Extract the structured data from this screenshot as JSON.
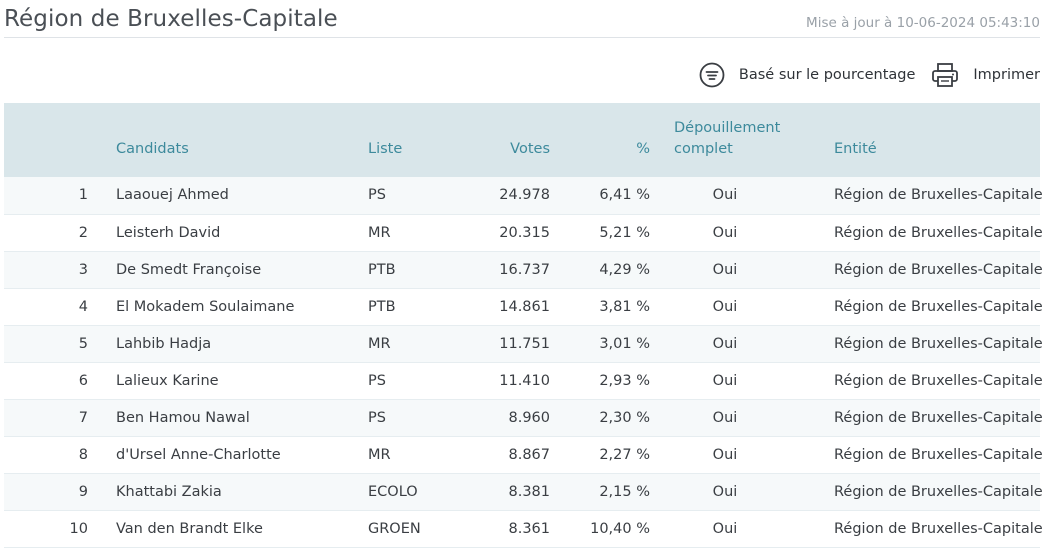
{
  "header": {
    "title": "Région de Bruxelles-Capitale",
    "updated": "Mise à jour à 10-06-2024 05:43:10"
  },
  "toolbar": {
    "percent_label": "Basé sur le pourcentage",
    "percent_icon": "sort-lines-icon",
    "print_label": "Imprimer",
    "print_icon": "printer-icon"
  },
  "table": {
    "columns": {
      "rank": "",
      "name": "Candidats",
      "list": "Liste",
      "votes": "Votes",
      "percent": "%",
      "complete": "Dépouillement complet",
      "entity": "Entité"
    },
    "rows": [
      {
        "rank": "1",
        "name": "Laaouej Ahmed",
        "list": "PS",
        "votes": "24.978",
        "percent": "6,41 %",
        "complete": "Oui",
        "entity": "Région de Bruxelles-Capitale"
      },
      {
        "rank": "2",
        "name": "Leisterh David",
        "list": "MR",
        "votes": "20.315",
        "percent": "5,21 %",
        "complete": "Oui",
        "entity": "Région de Bruxelles-Capitale"
      },
      {
        "rank": "3",
        "name": "De Smedt Françoise",
        "list": "PTB",
        "votes": "16.737",
        "percent": "4,29 %",
        "complete": "Oui",
        "entity": "Région de Bruxelles-Capitale"
      },
      {
        "rank": "4",
        "name": "El Mokadem Soulaimane",
        "list": "PTB",
        "votes": "14.861",
        "percent": "3,81 %",
        "complete": "Oui",
        "entity": "Région de Bruxelles-Capitale"
      },
      {
        "rank": "5",
        "name": "Lahbib Hadja",
        "list": "MR",
        "votes": "11.751",
        "percent": "3,01 %",
        "complete": "Oui",
        "entity": "Région de Bruxelles-Capitale"
      },
      {
        "rank": "6",
        "name": "Lalieux Karine",
        "list": "PS",
        "votes": "11.410",
        "percent": "2,93 %",
        "complete": "Oui",
        "entity": "Région de Bruxelles-Capitale"
      },
      {
        "rank": "7",
        "name": "Ben Hamou Nawal",
        "list": "PS",
        "votes": "8.960",
        "percent": "2,30 %",
        "complete": "Oui",
        "entity": "Région de Bruxelles-Capitale"
      },
      {
        "rank": "8",
        "name": "d'Ursel Anne-Charlotte",
        "list": "MR",
        "votes": "8.867",
        "percent": "2,27 %",
        "complete": "Oui",
        "entity": "Région de Bruxelles-Capitale"
      },
      {
        "rank": "9",
        "name": "Khattabi Zakia",
        "list": "ECOLO",
        "votes": "8.381",
        "percent": "2,15 %",
        "complete": "Oui",
        "entity": "Région de Bruxelles-Capitale"
      },
      {
        "rank": "10",
        "name": "Van den Brandt Elke",
        "list": "GROEN",
        "votes": "8.361",
        "percent": "10,40 %",
        "complete": "Oui",
        "entity": "Région de Bruxelles-Capitale"
      }
    ]
  },
  "colors": {
    "header_bg": "#d9e6ea",
    "header_text": "#3d8a9c",
    "row_alt_bg": "#f6f9fa"
  }
}
